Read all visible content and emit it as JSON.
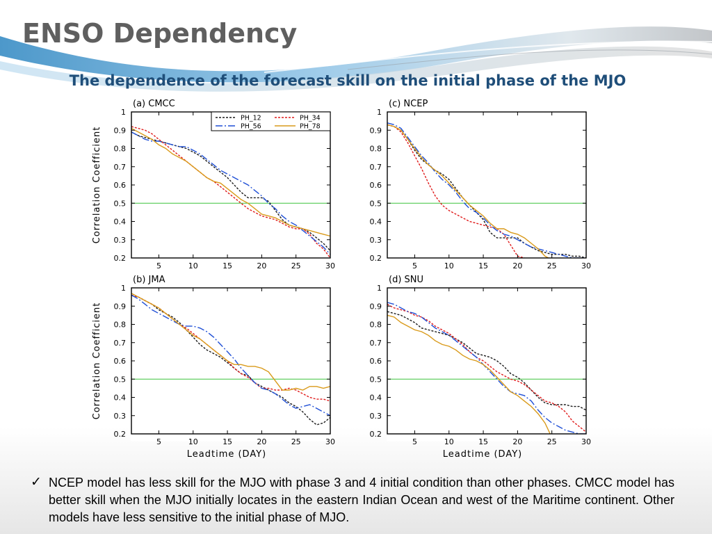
{
  "slide": {
    "title": "ENSO Dependency",
    "subtitle": "The dependence of the forecast skill on the initial phase of the MJO",
    "check_icon": "✓",
    "note": "NCEP model has less skill for the MJO with phase 3 and 4 initial condition than other phases. CMCC model has better skill when the MJO initially locates in the eastern Indian Ocean and west of the Maritime continent. Other models have less sensitive to the initial phase of MJO."
  },
  "chart_data": [
    {
      "type": "line",
      "panel": "(a) CMCC",
      "xlabel": "",
      "ylabel": "Correlation Coefficient",
      "xlim": [
        1,
        30
      ],
      "ylim": [
        0.2,
        1
      ],
      "xticks": [
        5,
        10,
        15,
        20,
        25,
        30
      ],
      "yticks": [
        0.2,
        0.3,
        0.4,
        0.5,
        0.6,
        0.7,
        0.8,
        0.9,
        1
      ],
      "reference_line": 0.5,
      "legend": "top-right",
      "x": [
        1,
        2,
        3,
        4,
        5,
        6,
        7,
        8,
        9,
        10,
        11,
        12,
        13,
        14,
        15,
        16,
        17,
        18,
        19,
        20,
        21,
        22,
        23,
        24,
        25,
        26,
        27,
        28,
        29,
        30
      ],
      "series": [
        {
          "name": "PH_12",
          "values": [
            0.89,
            0.87,
            0.86,
            0.85,
            0.84,
            0.83,
            0.82,
            0.81,
            0.8,
            0.78,
            0.76,
            0.73,
            0.7,
            0.67,
            0.64,
            0.6,
            0.56,
            0.53,
            0.53,
            0.53,
            0.51,
            0.46,
            0.41,
            0.38,
            0.37,
            0.36,
            0.34,
            0.31,
            0.28,
            0.24
          ]
        },
        {
          "name": "PH_34",
          "values": [
            0.92,
            0.91,
            0.9,
            0.88,
            0.85,
            0.82,
            0.79,
            0.76,
            0.73,
            0.7,
            0.67,
            0.64,
            0.62,
            0.59,
            0.56,
            0.53,
            0.5,
            0.47,
            0.45,
            0.43,
            0.42,
            0.41,
            0.39,
            0.37,
            0.36,
            0.36,
            0.33,
            0.28,
            0.25,
            0.2
          ]
        },
        {
          "name": "PH_56",
          "values": [
            0.89,
            0.87,
            0.85,
            0.84,
            0.84,
            0.83,
            0.82,
            0.81,
            0.81,
            0.79,
            0.77,
            0.74,
            0.71,
            0.68,
            0.66,
            0.64,
            0.62,
            0.6,
            0.57,
            0.54,
            0.5,
            0.47,
            0.43,
            0.4,
            0.38,
            0.35,
            0.32,
            0.29,
            0.26,
            0.22
          ]
        },
        {
          "name": "PH_78",
          "values": [
            0.91,
            0.89,
            0.87,
            0.85,
            0.82,
            0.8,
            0.77,
            0.75,
            0.73,
            0.7,
            0.67,
            0.64,
            0.62,
            0.61,
            0.58,
            0.55,
            0.52,
            0.5,
            0.47,
            0.44,
            0.43,
            0.42,
            0.4,
            0.38,
            0.37,
            0.36,
            0.35,
            0.34,
            0.33,
            0.32
          ]
        }
      ]
    },
    {
      "type": "line",
      "panel": "(c) NCEP",
      "xlabel": "",
      "ylabel": "",
      "xlim": [
        1,
        30
      ],
      "ylim": [
        0.2,
        1
      ],
      "xticks": [
        5,
        10,
        15,
        20,
        25,
        30
      ],
      "yticks": [
        0.2,
        0.3,
        0.4,
        0.5,
        0.6,
        0.7,
        0.8,
        0.9,
        1
      ],
      "reference_line": 0.5,
      "x": [
        1,
        2,
        3,
        4,
        5,
        6,
        7,
        8,
        9,
        10,
        11,
        12,
        13,
        14,
        15,
        16,
        17,
        18,
        19,
        20,
        21,
        22,
        23,
        24,
        25,
        26,
        27,
        28,
        29,
        30
      ],
      "series": [
        {
          "name": "PH_12",
          "values": [
            0.93,
            0.92,
            0.9,
            0.85,
            0.79,
            0.74,
            0.71,
            0.68,
            0.66,
            0.63,
            0.58,
            0.53,
            0.49,
            0.45,
            0.41,
            0.34,
            0.31,
            0.31,
            0.31,
            0.31,
            0.28,
            0.26,
            0.24,
            0.23,
            0.22,
            0.22,
            0.22,
            0.21,
            0.21,
            0.2
          ]
        },
        {
          "name": "PH_34",
          "values": [
            0.93,
            0.92,
            0.89,
            0.83,
            0.76,
            0.69,
            0.61,
            0.54,
            0.49,
            0.46,
            0.44,
            0.42,
            0.4,
            0.39,
            0.38,
            0.37,
            0.36,
            0.33,
            0.27,
            0.21,
            0.2,
            0.19,
            0.19,
            0.19,
            0.19,
            0.19,
            0.19,
            0.19,
            0.19,
            0.19
          ]
        },
        {
          "name": "PH_56",
          "values": [
            0.94,
            0.93,
            0.91,
            0.86,
            0.81,
            0.76,
            0.72,
            0.67,
            0.63,
            0.6,
            0.56,
            0.51,
            0.47,
            0.45,
            0.42,
            0.38,
            0.35,
            0.33,
            0.32,
            0.3,
            0.28,
            0.26,
            0.25,
            0.24,
            0.23,
            0.22,
            0.21,
            0.2,
            0.2,
            0.2
          ]
        },
        {
          "name": "PH_78",
          "values": [
            0.93,
            0.92,
            0.9,
            0.85,
            0.8,
            0.75,
            0.71,
            0.68,
            0.65,
            0.61,
            0.57,
            0.53,
            0.49,
            0.46,
            0.43,
            0.39,
            0.36,
            0.36,
            0.34,
            0.33,
            0.31,
            0.28,
            0.25,
            0.21,
            0.19,
            0.19,
            0.19,
            0.19,
            0.19,
            0.19
          ]
        }
      ]
    },
    {
      "type": "line",
      "panel": "(b) JMA",
      "xlabel": "Leadtime (DAY)",
      "ylabel": "Correlation Coefficient",
      "xlim": [
        1,
        30
      ],
      "ylim": [
        0.2,
        1
      ],
      "xticks": [
        5,
        10,
        15,
        20,
        25,
        30
      ],
      "yticks": [
        0.2,
        0.3,
        0.4,
        0.5,
        0.6,
        0.7,
        0.8,
        0.9,
        1
      ],
      "reference_line": 0.5,
      "x": [
        1,
        2,
        3,
        4,
        5,
        6,
        7,
        8,
        9,
        10,
        11,
        12,
        13,
        14,
        15,
        16,
        17,
        18,
        19,
        20,
        21,
        22,
        23,
        24,
        25,
        26,
        27,
        28,
        29,
        30
      ],
      "series": [
        {
          "name": "PH_12",
          "values": [
            0.96,
            0.95,
            0.93,
            0.91,
            0.88,
            0.86,
            0.84,
            0.81,
            0.77,
            0.73,
            0.69,
            0.66,
            0.64,
            0.62,
            0.59,
            0.56,
            0.53,
            0.52,
            0.48,
            0.46,
            0.44,
            0.42,
            0.4,
            0.37,
            0.35,
            0.32,
            0.28,
            0.25,
            0.26,
            0.29
          ]
        },
        {
          "name": "PH_34",
          "values": [
            0.96,
            0.95,
            0.93,
            0.91,
            0.89,
            0.86,
            0.83,
            0.8,
            0.78,
            0.75,
            0.72,
            0.69,
            0.66,
            0.63,
            0.6,
            0.56,
            0.53,
            0.51,
            0.48,
            0.45,
            0.45,
            0.44,
            0.44,
            0.45,
            0.44,
            0.42,
            0.4,
            0.39,
            0.39,
            0.38
          ]
        },
        {
          "name": "PH_56",
          "values": [
            0.96,
            0.94,
            0.91,
            0.88,
            0.86,
            0.84,
            0.82,
            0.8,
            0.79,
            0.79,
            0.78,
            0.76,
            0.73,
            0.69,
            0.65,
            0.61,
            0.56,
            0.52,
            0.48,
            0.45,
            0.44,
            0.42,
            0.39,
            0.36,
            0.34,
            0.35,
            0.36,
            0.34,
            0.32,
            0.3
          ]
        },
        {
          "name": "PH_78",
          "values": [
            0.97,
            0.95,
            0.93,
            0.91,
            0.89,
            0.86,
            0.83,
            0.8,
            0.77,
            0.74,
            0.72,
            0.69,
            0.66,
            0.63,
            0.6,
            0.58,
            0.58,
            0.57,
            0.57,
            0.56,
            0.54,
            0.49,
            0.44,
            0.44,
            0.45,
            0.44,
            0.46,
            0.46,
            0.45,
            0.46
          ]
        }
      ]
    },
    {
      "type": "line",
      "panel": "(d) SNU",
      "xlabel": "Leadtime (DAY)",
      "ylabel": "",
      "xlim": [
        1,
        30
      ],
      "ylim": [
        0.2,
        1
      ],
      "xticks": [
        5,
        10,
        15,
        20,
        25,
        30
      ],
      "yticks": [
        0.2,
        0.3,
        0.4,
        0.5,
        0.6,
        0.7,
        0.8,
        0.9,
        1
      ],
      "reference_line": 0.5,
      "x": [
        1,
        2,
        3,
        4,
        5,
        6,
        7,
        8,
        9,
        10,
        11,
        12,
        13,
        14,
        15,
        16,
        17,
        18,
        19,
        20,
        21,
        22,
        23,
        24,
        25,
        26,
        27,
        28,
        29,
        30
      ],
      "series": [
        {
          "name": "PH_12",
          "values": [
            0.87,
            0.86,
            0.85,
            0.83,
            0.81,
            0.78,
            0.77,
            0.76,
            0.75,
            0.74,
            0.72,
            0.7,
            0.67,
            0.64,
            0.63,
            0.62,
            0.6,
            0.57,
            0.53,
            0.51,
            0.48,
            0.44,
            0.4,
            0.37,
            0.36,
            0.36,
            0.36,
            0.35,
            0.35,
            0.33
          ]
        },
        {
          "name": "PH_34",
          "values": [
            0.91,
            0.89,
            0.88,
            0.87,
            0.85,
            0.84,
            0.82,
            0.79,
            0.77,
            0.75,
            0.72,
            0.69,
            0.65,
            0.62,
            0.6,
            0.57,
            0.54,
            0.52,
            0.5,
            0.49,
            0.47,
            0.44,
            0.41,
            0.38,
            0.37,
            0.35,
            0.32,
            0.27,
            0.24,
            0.21
          ]
        },
        {
          "name": "PH_56",
          "values": [
            0.92,
            0.91,
            0.89,
            0.87,
            0.86,
            0.84,
            0.81,
            0.78,
            0.76,
            0.74,
            0.71,
            0.68,
            0.65,
            0.62,
            0.58,
            0.54,
            0.5,
            0.46,
            0.43,
            0.42,
            0.41,
            0.38,
            0.33,
            0.29,
            0.26,
            0.24,
            0.22,
            0.21,
            0.2,
            0.2
          ]
        },
        {
          "name": "PH_78",
          "values": [
            0.85,
            0.84,
            0.81,
            0.79,
            0.77,
            0.76,
            0.74,
            0.71,
            0.69,
            0.68,
            0.66,
            0.63,
            0.61,
            0.6,
            0.58,
            0.55,
            0.51,
            0.47,
            0.43,
            0.41,
            0.38,
            0.35,
            0.31,
            0.26,
            0.18,
            0.18,
            0.18,
            0.18,
            0.18,
            0.18
          ]
        }
      ]
    }
  ],
  "series_colors": {
    "PH_12": "#1a1a1a",
    "PH_34": "#e01b1b",
    "PH_56": "#1f4fd6",
    "PH_78": "#d99a1a"
  },
  "reference_color": "#3cc43c"
}
